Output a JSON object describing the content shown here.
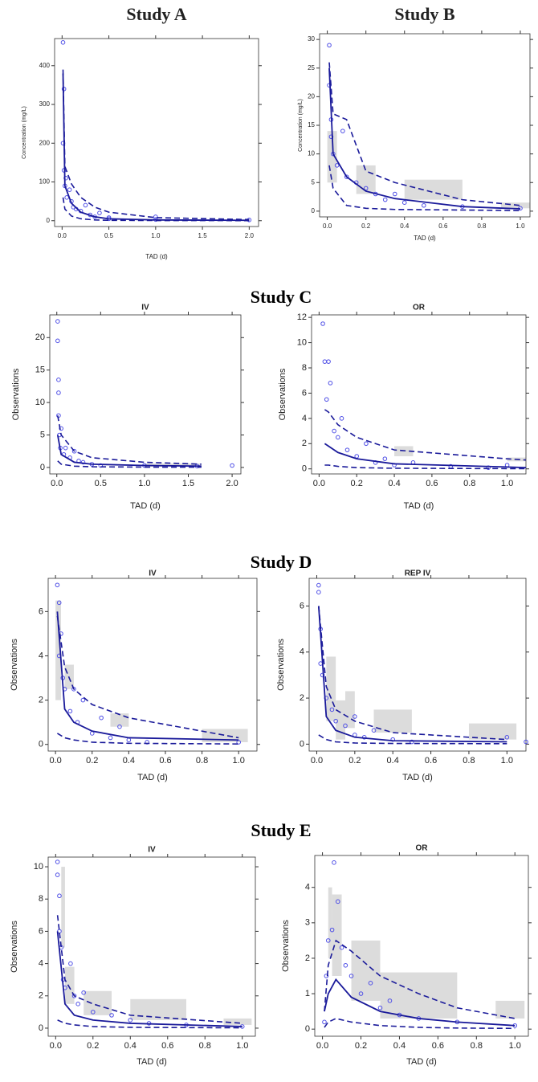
{
  "section_titles": [
    "Study C",
    "Study D",
    "Study E"
  ],
  "colors": {
    "points": "#4f4fe6",
    "lines": "#1a1a9a",
    "bands": "#dcdcdc"
  },
  "chart_data": [
    {
      "type": "vpc",
      "title": "Study A",
      "x_label": "TAD (d)",
      "y_label": "Concentration (mg/L)",
      "xlim": [
        -0.08,
        2.1
      ],
      "ylim": [
        -15,
        470
      ],
      "xticks": [
        {
          "value": 0,
          "label": "0.0"
        },
        0.5,
        {
          "value": 1,
          "label": "1.0"
        },
        1.5,
        {
          "value": 2,
          "label": "2.0"
        }
      ],
      "yticks": [
        0,
        100,
        200,
        300,
        400
      ],
      "observed": {
        "x": [
          0.01,
          0.01,
          0.02,
          0.02,
          0.03,
          0.04,
          0.05,
          0.08,
          0.1,
          0.12,
          0.15,
          0.2,
          0.25,
          0.3,
          0.35,
          0.4,
          0.5,
          0.5,
          1.0,
          1.0,
          2.0
        ],
        "y": [
          460,
          200,
          340,
          130,
          90,
          110,
          60,
          80,
          50,
          35,
          30,
          25,
          40,
          15,
          10,
          20,
          8,
          5,
          3,
          10,
          2
        ]
      },
      "lines": {
        "x": [
          0.01,
          0.03,
          0.1,
          0.2,
          0.35,
          0.5,
          1.0,
          2.0
        ],
        "p5": [
          60,
          30,
          12,
          5,
          2,
          1,
          0.5,
          0.2
        ],
        "median": [
          380,
          90,
          45,
          22,
          10,
          5,
          2,
          1
        ],
        "p95": [
          390,
          140,
          95,
          60,
          35,
          22,
          8,
          3
        ]
      },
      "bands": []
    },
    {
      "type": "vpc",
      "title": "Study B",
      "x_label": "TAD (d)",
      "y_label": "Concentration (mg/L)",
      "xlim": [
        -0.04,
        1.05
      ],
      "ylim": [
        -1,
        31
      ],
      "xticks": [
        {
          "value": 0,
          "label": "0.0"
        },
        0.2,
        0.4,
        0.6,
        0.8,
        {
          "value": 1,
          "label": "1.0"
        }
      ],
      "yticks": [
        0,
        5,
        10,
        15,
        20,
        25,
        30
      ],
      "observed": {
        "x": [
          0.01,
          0.01,
          0.02,
          0.02,
          0.03,
          0.05,
          0.08,
          0.1,
          0.15,
          0.2,
          0.25,
          0.3,
          0.35,
          0.4,
          0.5,
          0.7,
          1.0
        ],
        "y": [
          29,
          22,
          16,
          13,
          10,
          8,
          14,
          6,
          5,
          4,
          3,
          2,
          3,
          1.5,
          1,
          0.8,
          0.5
        ]
      },
      "lines": {
        "x": [
          0.01,
          0.03,
          0.1,
          0.2,
          0.35,
          0.7,
          1.0
        ],
        "p5": [
          8,
          4,
          1,
          0.5,
          0.3,
          0.2,
          0.1
        ],
        "median": [
          25,
          10,
          6,
          3.5,
          2.2,
          0.8,
          0.4
        ],
        "p95": [
          26,
          17,
          16,
          7,
          5,
          2,
          1
        ]
      },
      "bands": [
        {
          "x": [
            0,
            0.05
          ],
          "y": [
            5,
            14
          ]
        },
        {
          "x": [
            0.15,
            0.25
          ],
          "y": [
            3,
            8
          ]
        },
        {
          "x": [
            0.4,
            0.7
          ],
          "y": [
            2,
            5.5
          ]
        },
        {
          "x": [
            0.9,
            1.05
          ],
          "y": [
            0.5,
            1.5
          ]
        }
      ]
    },
    {
      "type": "vpc",
      "subtitle": "IV",
      "x_label": "TAD (d)",
      "y_label": "Observations",
      "xlim": [
        -0.08,
        2.1
      ],
      "ylim": [
        -1,
        23.5
      ],
      "xticks": [
        {
          "value": 0,
          "label": "0.0"
        },
        0.5,
        {
          "value": 1,
          "label": "1.0"
        },
        1.5,
        {
          "value": 2,
          "label": "2.0"
        }
      ],
      "yticks": [
        0,
        5,
        10,
        15,
        20
      ],
      "observed": {
        "x": [
          0.01,
          0.01,
          0.02,
          0.02,
          0.02,
          0.03,
          0.04,
          0.05,
          0.08,
          0.1,
          0.15,
          0.2,
          0.25,
          0.3,
          0.4,
          0.5,
          1.0,
          1.6,
          2.0
        ],
        "y": [
          22.5,
          19.5,
          13.5,
          11.5,
          8,
          5,
          3,
          6,
          2,
          3,
          1.5,
          2.5,
          1,
          0.8,
          0.5,
          0.3,
          0.3,
          0.2,
          0.3
        ]
      },
      "lines": {
        "x": [
          0.01,
          0.05,
          0.2,
          0.4,
          1.0,
          1.65
        ],
        "p5": [
          1,
          0.5,
          0.2,
          0.1,
          0.05,
          0.05
        ],
        "median": [
          5,
          2,
          0.8,
          0.5,
          0.3,
          0.2
        ],
        "p95": [
          8,
          5,
          2.5,
          1.5,
          0.8,
          0.5
        ]
      },
      "bands": [
        {
          "x": [
            1.0,
            1.65
          ],
          "y": [
            0.1,
            0.6
          ]
        }
      ]
    },
    {
      "type": "vpc",
      "subtitle": "OR",
      "x_label": "TAD (d)",
      "y_label": "Observations",
      "xlim": [
        -0.04,
        1.1
      ],
      "ylim": [
        -0.4,
        12.2
      ],
      "xticks": [
        {
          "value": 0,
          "label": "0.0"
        },
        0.2,
        0.4,
        0.6,
        0.8,
        {
          "value": 1,
          "label": "1.0"
        }
      ],
      "yticks": [
        0,
        2,
        4,
        6,
        8,
        10,
        12
      ],
      "observed": {
        "x": [
          0.02,
          0.03,
          0.04,
          0.05,
          0.06,
          0.08,
          0.1,
          0.12,
          0.15,
          0.2,
          0.25,
          0.3,
          0.35,
          0.4,
          0.5,
          0.7,
          0.9,
          1.0
        ],
        "y": [
          11.5,
          8.5,
          5.5,
          8.5,
          6.8,
          3,
          2.5,
          4,
          1.5,
          1,
          2,
          0.5,
          0.8,
          0.3,
          0.5,
          0.2,
          0.1,
          0.3
        ]
      },
      "lines": {
        "x": [
          0.03,
          0.05,
          0.1,
          0.2,
          0.4,
          1.0,
          1.1
        ],
        "p5": [
          0.3,
          0.3,
          0.2,
          0.1,
          0.05,
          0.02,
          0.02
        ],
        "median": [
          2,
          1.8,
          1.3,
          0.8,
          0.4,
          0.15,
          0.1
        ],
        "p95": [
          4.7,
          4.5,
          3.5,
          2.5,
          1.5,
          0.8,
          0.7
        ]
      },
      "bands": [
        {
          "x": [
            0.4,
            0.5
          ],
          "y": [
            1,
            1.8
          ]
        },
        {
          "x": [
            1.0,
            1.1
          ],
          "y": [
            0.6,
            0.9
          ]
        }
      ]
    },
    {
      "type": "vpc",
      "subtitle": "IV",
      "x_label": "TAD (d)",
      "y_label": "Observations",
      "xlim": [
        -0.04,
        1.1
      ],
      "ylim": [
        -0.3,
        7.5
      ],
      "xticks": [
        {
          "value": 0,
          "label": "0.0"
        },
        0.2,
        0.4,
        0.6,
        0.8,
        {
          "value": 1,
          "label": "1.0"
        }
      ],
      "yticks": [
        0,
        2,
        4,
        6
      ],
      "observed": {
        "x": [
          0.01,
          0.02,
          0.02,
          0.03,
          0.04,
          0.05,
          0.08,
          0.1,
          0.12,
          0.15,
          0.2,
          0.25,
          0.3,
          0.35,
          0.4,
          0.5,
          1.0
        ],
        "y": [
          7.2,
          6.4,
          4,
          5,
          3,
          2.5,
          1.5,
          2.5,
          1,
          2,
          0.5,
          1.2,
          0.3,
          0.8,
          0.2,
          0.1,
          0.1
        ]
      },
      "lines": {
        "x": [
          0.01,
          0.05,
          0.1,
          0.2,
          0.4,
          1.0
        ],
        "p5": [
          0.5,
          0.3,
          0.2,
          0.1,
          0.05,
          0.02
        ],
        "median": [
          6,
          1.6,
          1,
          0.6,
          0.3,
          0.2
        ],
        "p95": [
          5.8,
          3.5,
          2.5,
          1.8,
          1.2,
          0.3
        ]
      },
      "bands": [
        {
          "x": [
            0,
            0.03
          ],
          "y": [
            2,
            6.5
          ]
        },
        {
          "x": [
            0.05,
            0.1
          ],
          "y": [
            2.5,
            3.6
          ]
        },
        {
          "x": [
            0.3,
            0.4
          ],
          "y": [
            0.8,
            1.4
          ]
        },
        {
          "x": [
            0.8,
            1.05
          ],
          "y": [
            0.1,
            0.7
          ]
        }
      ]
    },
    {
      "type": "vpc",
      "subtitle": "REP IV",
      "x_label": "TAD (d)",
      "y_label": "Observations",
      "xlim": [
        -0.04,
        1.1
      ],
      "ylim": [
        -0.3,
        7.2
      ],
      "xticks": [
        {
          "value": 0,
          "label": "0.0"
        },
        0.2,
        0.4,
        0.6,
        0.8,
        {
          "value": 1,
          "label": "1.0"
        }
      ],
      "yticks": [
        0,
        2,
        4,
        6
      ],
      "observed": {
        "x": [
          0.01,
          0.01,
          0.02,
          0.02,
          0.03,
          0.05,
          0.08,
          0.1,
          0.15,
          0.2,
          0.2,
          0.25,
          0.3,
          0.4,
          0.5,
          1.0,
          1.1
        ],
        "y": [
          6.9,
          6.6,
          5,
          3.5,
          3,
          2,
          1.5,
          1,
          0.8,
          1.2,
          0.4,
          0.3,
          0.6,
          0.2,
          0.1,
          0.3,
          0.1
        ]
      },
      "lines": {
        "x": [
          0.01,
          0.05,
          0.1,
          0.2,
          0.4,
          1.0
        ],
        "p5": [
          0.4,
          0.2,
          0.1,
          0.05,
          0.03,
          0.02
        ],
        "median": [
          6,
          1.2,
          0.6,
          0.3,
          0.15,
          0.1
        ],
        "p95": [
          6,
          2.5,
          1.5,
          1,
          0.5,
          0.2
        ]
      },
      "bands": [
        {
          "x": [
            0.05,
            0.1
          ],
          "y": [
            1,
            3.8
          ]
        },
        {
          "x": [
            0.1,
            0.15
          ],
          "y": [
            0.2,
            1.9
          ]
        },
        {
          "x": [
            0.15,
            0.2
          ],
          "y": [
            0.7,
            2.3
          ]
        },
        {
          "x": [
            0.3,
            0.5
          ],
          "y": [
            0.5,
            1.5
          ]
        },
        {
          "x": [
            0.8,
            1.05
          ],
          "y": [
            0.2,
            0.9
          ]
        }
      ]
    },
    {
      "type": "vpc",
      "subtitle": "IV",
      "x_label": "TAD (d)",
      "y_label": "Observations",
      "xlim": [
        -0.04,
        1.07
      ],
      "ylim": [
        -0.5,
        10.6
      ],
      "xticks": [
        {
          "value": 0,
          "label": "0.0"
        },
        0.2,
        0.4,
        0.6,
        0.8,
        {
          "value": 1,
          "label": "1.0"
        }
      ],
      "yticks": [
        0,
        2,
        4,
        6,
        8,
        10
      ],
      "observed": {
        "x": [
          0.01,
          0.01,
          0.02,
          0.02,
          0.03,
          0.04,
          0.05,
          0.08,
          0.1,
          0.12,
          0.15,
          0.2,
          0.3,
          0.4,
          0.5,
          0.7,
          1.0
        ],
        "y": [
          10.3,
          9.5,
          8.2,
          6,
          5,
          3,
          2.5,
          4,
          2,
          1.5,
          2.2,
          1,
          0.8,
          0.5,
          0.3,
          0.2,
          0.1
        ]
      },
      "lines": {
        "x": [
          0.01,
          0.05,
          0.1,
          0.2,
          0.4,
          1.0
        ],
        "p5": [
          0.5,
          0.3,
          0.2,
          0.1,
          0.05,
          0.02
        ],
        "median": [
          6,
          1.5,
          0.8,
          0.5,
          0.3,
          0.1
        ],
        "p95": [
          7,
          3,
          2,
          1.5,
          0.8,
          0.3
        ]
      },
      "bands": [
        {
          "x": [
            0.03,
            0.05
          ],
          "y": [
            5,
            10
          ]
        },
        {
          "x": [
            0.05,
            0.1
          ],
          "y": [
            1.5,
            3.8
          ]
        },
        {
          "x": [
            0.15,
            0.3
          ],
          "y": [
            0.8,
            2.3
          ]
        },
        {
          "x": [
            0.4,
            0.7
          ],
          "y": [
            0.5,
            1.8
          ]
        },
        {
          "x": [
            0.9,
            1.05
          ],
          "y": [
            0.2,
            0.6
          ]
        }
      ]
    },
    {
      "type": "vpc",
      "subtitle": "OR",
      "x_label": "TAD (d)",
      "y_label": "Observations",
      "xlim": [
        -0.04,
        1.07
      ],
      "ylim": [
        -0.2,
        4.9
      ],
      "xticks": [
        {
          "value": 0,
          "label": "0.0"
        },
        0.2,
        0.4,
        0.6,
        0.8,
        {
          "value": 1,
          "label": "1.0"
        }
      ],
      "yticks": [
        0,
        1,
        2,
        3,
        4
      ],
      "observed": {
        "x": [
          0.01,
          0.02,
          0.03,
          0.05,
          0.06,
          0.08,
          0.1,
          0.12,
          0.15,
          0.2,
          0.25,
          0.3,
          0.35,
          0.4,
          0.5,
          0.7,
          1.0
        ],
        "y": [
          0.2,
          1.5,
          2.5,
          2.8,
          4.7,
          3.6,
          2.3,
          1.8,
          1.5,
          1,
          1.3,
          0.6,
          0.8,
          0.4,
          0.3,
          0.2,
          0.1
        ]
      },
      "lines": {
        "x": [
          0.01,
          0.03,
          0.07,
          0.15,
          0.3,
          0.5,
          0.7,
          1.0
        ],
        "p5": [
          0.05,
          0.2,
          0.3,
          0.2,
          0.1,
          0.05,
          0.03,
          0.02
        ],
        "median": [
          0.5,
          1,
          1.4,
          0.9,
          0.5,
          0.3,
          0.2,
          0.1
        ],
        "p95": [
          0.5,
          1.8,
          2.5,
          2.2,
          1.5,
          1.0,
          0.6,
          0.3
        ]
      },
      "bands": [
        {
          "x": [
            0.03,
            0.05
          ],
          "y": [
            2,
            4
          ]
        },
        {
          "x": [
            0.05,
            0.1
          ],
          "y": [
            1.5,
            3.8
          ]
        },
        {
          "x": [
            0.15,
            0.3
          ],
          "y": [
            0.8,
            2.5
          ]
        },
        {
          "x": [
            0.3,
            0.7
          ],
          "y": [
            0.3,
            1.6
          ]
        },
        {
          "x": [
            0.9,
            1.05
          ],
          "y": [
            0.3,
            0.8
          ]
        }
      ]
    }
  ]
}
